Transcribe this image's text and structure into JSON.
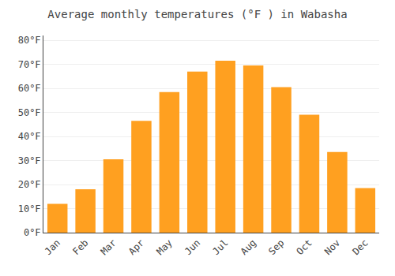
{
  "chart_data": {
    "type": "bar",
    "title": "Average monthly temperatures (°F ) in Wabasha",
    "categories": [
      "Jan",
      "Feb",
      "Mar",
      "Apr",
      "May",
      "Jun",
      "Jul",
      "Aug",
      "Sep",
      "Oct",
      "Nov",
      "Dec"
    ],
    "values": [
      12,
      18,
      30.5,
      46.5,
      58.5,
      67,
      71.5,
      69.5,
      60.5,
      49,
      33.5,
      18.5
    ],
    "color": "#FFA020",
    "ylim": [
      0,
      82
    ],
    "yticks": [
      {
        "value": 0,
        "label": "0°F"
      },
      {
        "value": 10,
        "label": "10°F"
      },
      {
        "value": 20,
        "label": "20°F"
      },
      {
        "value": 30,
        "label": "30°F"
      },
      {
        "value": 40,
        "label": "40°F"
      },
      {
        "value": 50,
        "label": "50°F"
      },
      {
        "value": 60,
        "label": "60°F"
      },
      {
        "value": 70,
        "label": "70°F"
      },
      {
        "value": 80,
        "label": "80°F"
      }
    ],
    "grid": true
  }
}
